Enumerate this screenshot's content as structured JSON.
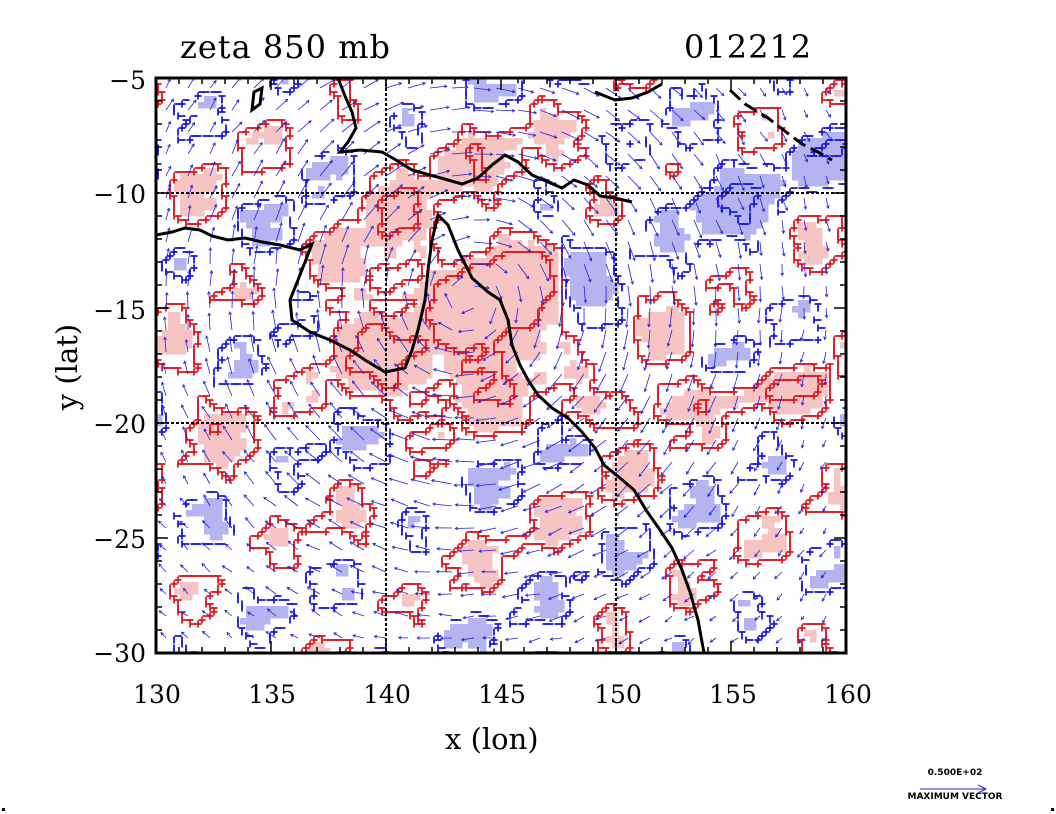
{
  "map": {
    "title": "zeta 850 mb",
    "date_code": "012212",
    "xlabel": "x (lon)",
    "ylabel": "y (lat)",
    "lon_range": [
      130,
      160
    ],
    "lat_range": [
      -30,
      -5
    ],
    "x_ticks": [
      "130",
      "135",
      "140",
      "145",
      "150",
      "155",
      "160"
    ],
    "y_ticks": [
      "−5",
      "−10",
      "−15",
      "−20",
      "−25",
      "−30"
    ],
    "grid_lon": [
      140,
      150
    ],
    "grid_lat": [
      -10,
      -20
    ],
    "colors": {
      "positive_contour": "#e8141c",
      "positive_fill": "#f7c4c4",
      "negative_contour": "#1a1ae6",
      "negative_fill": "#b4b4f0",
      "vector": "#2020dd",
      "coast": "#000000"
    }
  },
  "legend": {
    "value": "0.500E+02",
    "label": "MAXIMUM VECTOR"
  }
}
